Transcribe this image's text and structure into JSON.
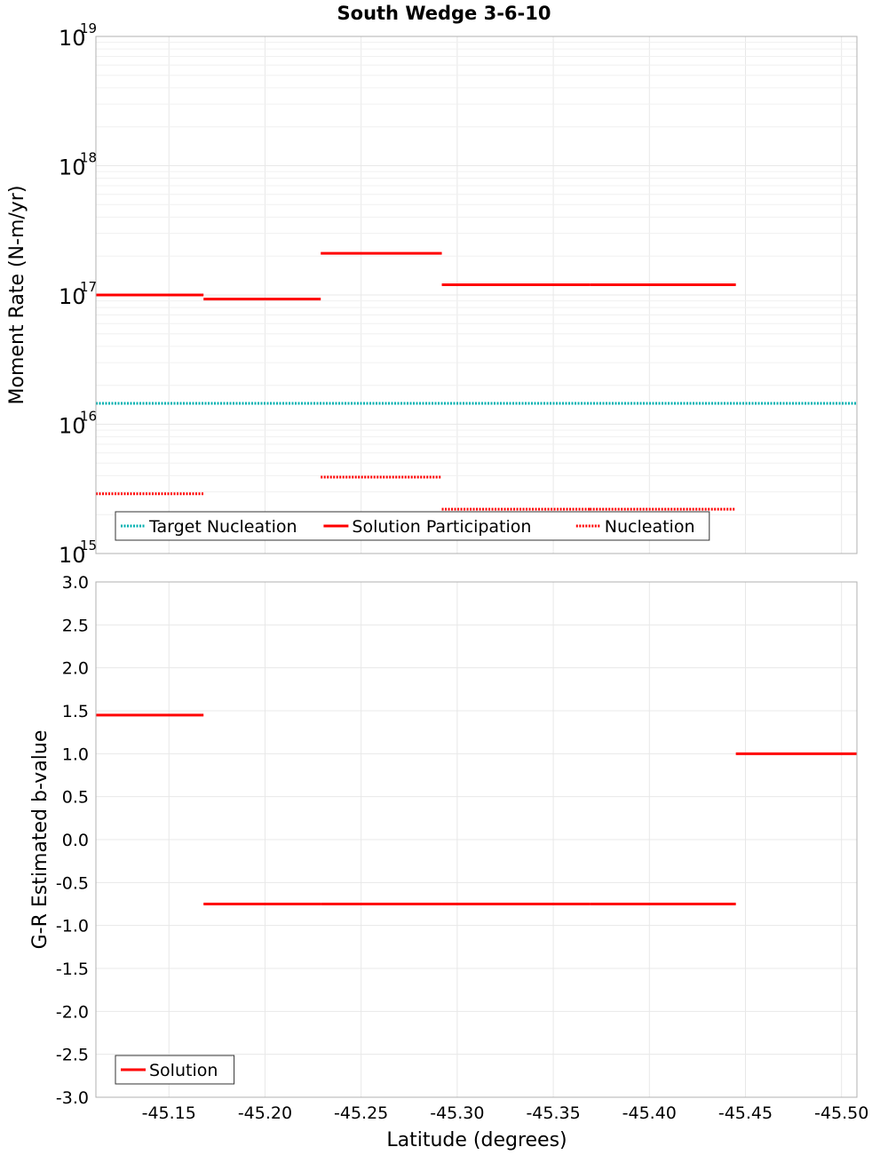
{
  "chart_data": [
    {
      "type": "line",
      "title": "South Wedge 3-6-10",
      "xlabel": "",
      "ylabel": "Moment Rate (N-m/yr)",
      "yscale": "log",
      "ylim": [
        1000000000000000.0,
        1e+19
      ],
      "xlim": [
        -45.112,
        -45.508
      ],
      "x_reversed": true,
      "y_ticks": [
        {
          "base": "10",
          "exp": "15",
          "value": 1000000000000000.0
        },
        {
          "base": "10",
          "exp": "16",
          "value": 1e+16
        },
        {
          "base": "10",
          "exp": "17",
          "value": 1e+17
        },
        {
          "base": "10",
          "exp": "18",
          "value": 1e+18
        },
        {
          "base": "10",
          "exp": "19",
          "value": 1e+19
        }
      ],
      "grid": true,
      "legend_position": "bottom-left",
      "series": [
        {
          "name": "Target Nucleation",
          "color": "#00b0b0",
          "style": "dotted",
          "segments": [
            {
              "x": [
                -45.112,
                -45.508
              ],
              "y": 1.45e+16
            }
          ]
        },
        {
          "name": "Solution Participation",
          "color": "#ff0000",
          "style": "solid",
          "segments": [
            {
              "x": [
                -45.112,
                -45.168
              ],
              "y": 1e+17
            },
            {
              "x": [
                -45.168,
                -45.229
              ],
              "y": 9.3e+16
            },
            {
              "x": [
                -45.229,
                -45.292
              ],
              "y": 2.1e+17
            },
            {
              "x": [
                -45.292,
                -45.369
              ],
              "y": 1.2e+17
            },
            {
              "x": [
                -45.369,
                -45.445
              ],
              "y": 1.2e+17
            }
          ]
        },
        {
          "name": "Nucleation",
          "color": "#ff0000",
          "style": "dotted",
          "segments": [
            {
              "x": [
                -45.112,
                -45.168
              ],
              "y": 2900000000000000.0
            },
            {
              "x": [
                -45.168,
                -45.229
              ],
              "y": 1700000000000000.0
            },
            {
              "x": [
                -45.229,
                -45.292
              ],
              "y": 3900000000000000.0
            },
            {
              "x": [
                -45.292,
                -45.369
              ],
              "y": 2200000000000000.0
            },
            {
              "x": [
                -45.369,
                -45.445
              ],
              "y": 2200000000000000.0
            }
          ]
        }
      ]
    },
    {
      "type": "line",
      "title": "",
      "xlabel": "Latitude (degrees)",
      "ylabel": "G-R Estimated b-value",
      "yscale": "linear",
      "ylim": [
        -3.0,
        3.0
      ],
      "xlim": [
        -45.112,
        -45.508
      ],
      "x_reversed": true,
      "y_ticks": [
        "-3.0",
        "-2.5",
        "-2.0",
        "-1.5",
        "-1.0",
        "-0.5",
        "0.0",
        "0.5",
        "1.0",
        "1.5",
        "2.0",
        "2.5",
        "3.0"
      ],
      "x_ticks": [
        "-45.15",
        "-45.20",
        "-45.25",
        "-45.30",
        "-45.35",
        "-45.40",
        "-45.45",
        "-45.50"
      ],
      "grid": true,
      "legend_position": "bottom-left",
      "series": [
        {
          "name": "Solution",
          "color": "#ff0000",
          "style": "solid",
          "segments": [
            {
              "x": [
                -45.112,
                -45.168
              ],
              "y": 1.45
            },
            {
              "x": [
                -45.168,
                -45.229
              ],
              "y": -0.75
            },
            {
              "x": [
                -45.229,
                -45.292
              ],
              "y": -0.75
            },
            {
              "x": [
                -45.292,
                -45.369
              ],
              "y": -0.75
            },
            {
              "x": [
                -45.369,
                -45.445
              ],
              "y": -0.75
            },
            {
              "x": [
                -45.445,
                -45.508
              ],
              "y": 1.0
            }
          ]
        }
      ]
    }
  ]
}
